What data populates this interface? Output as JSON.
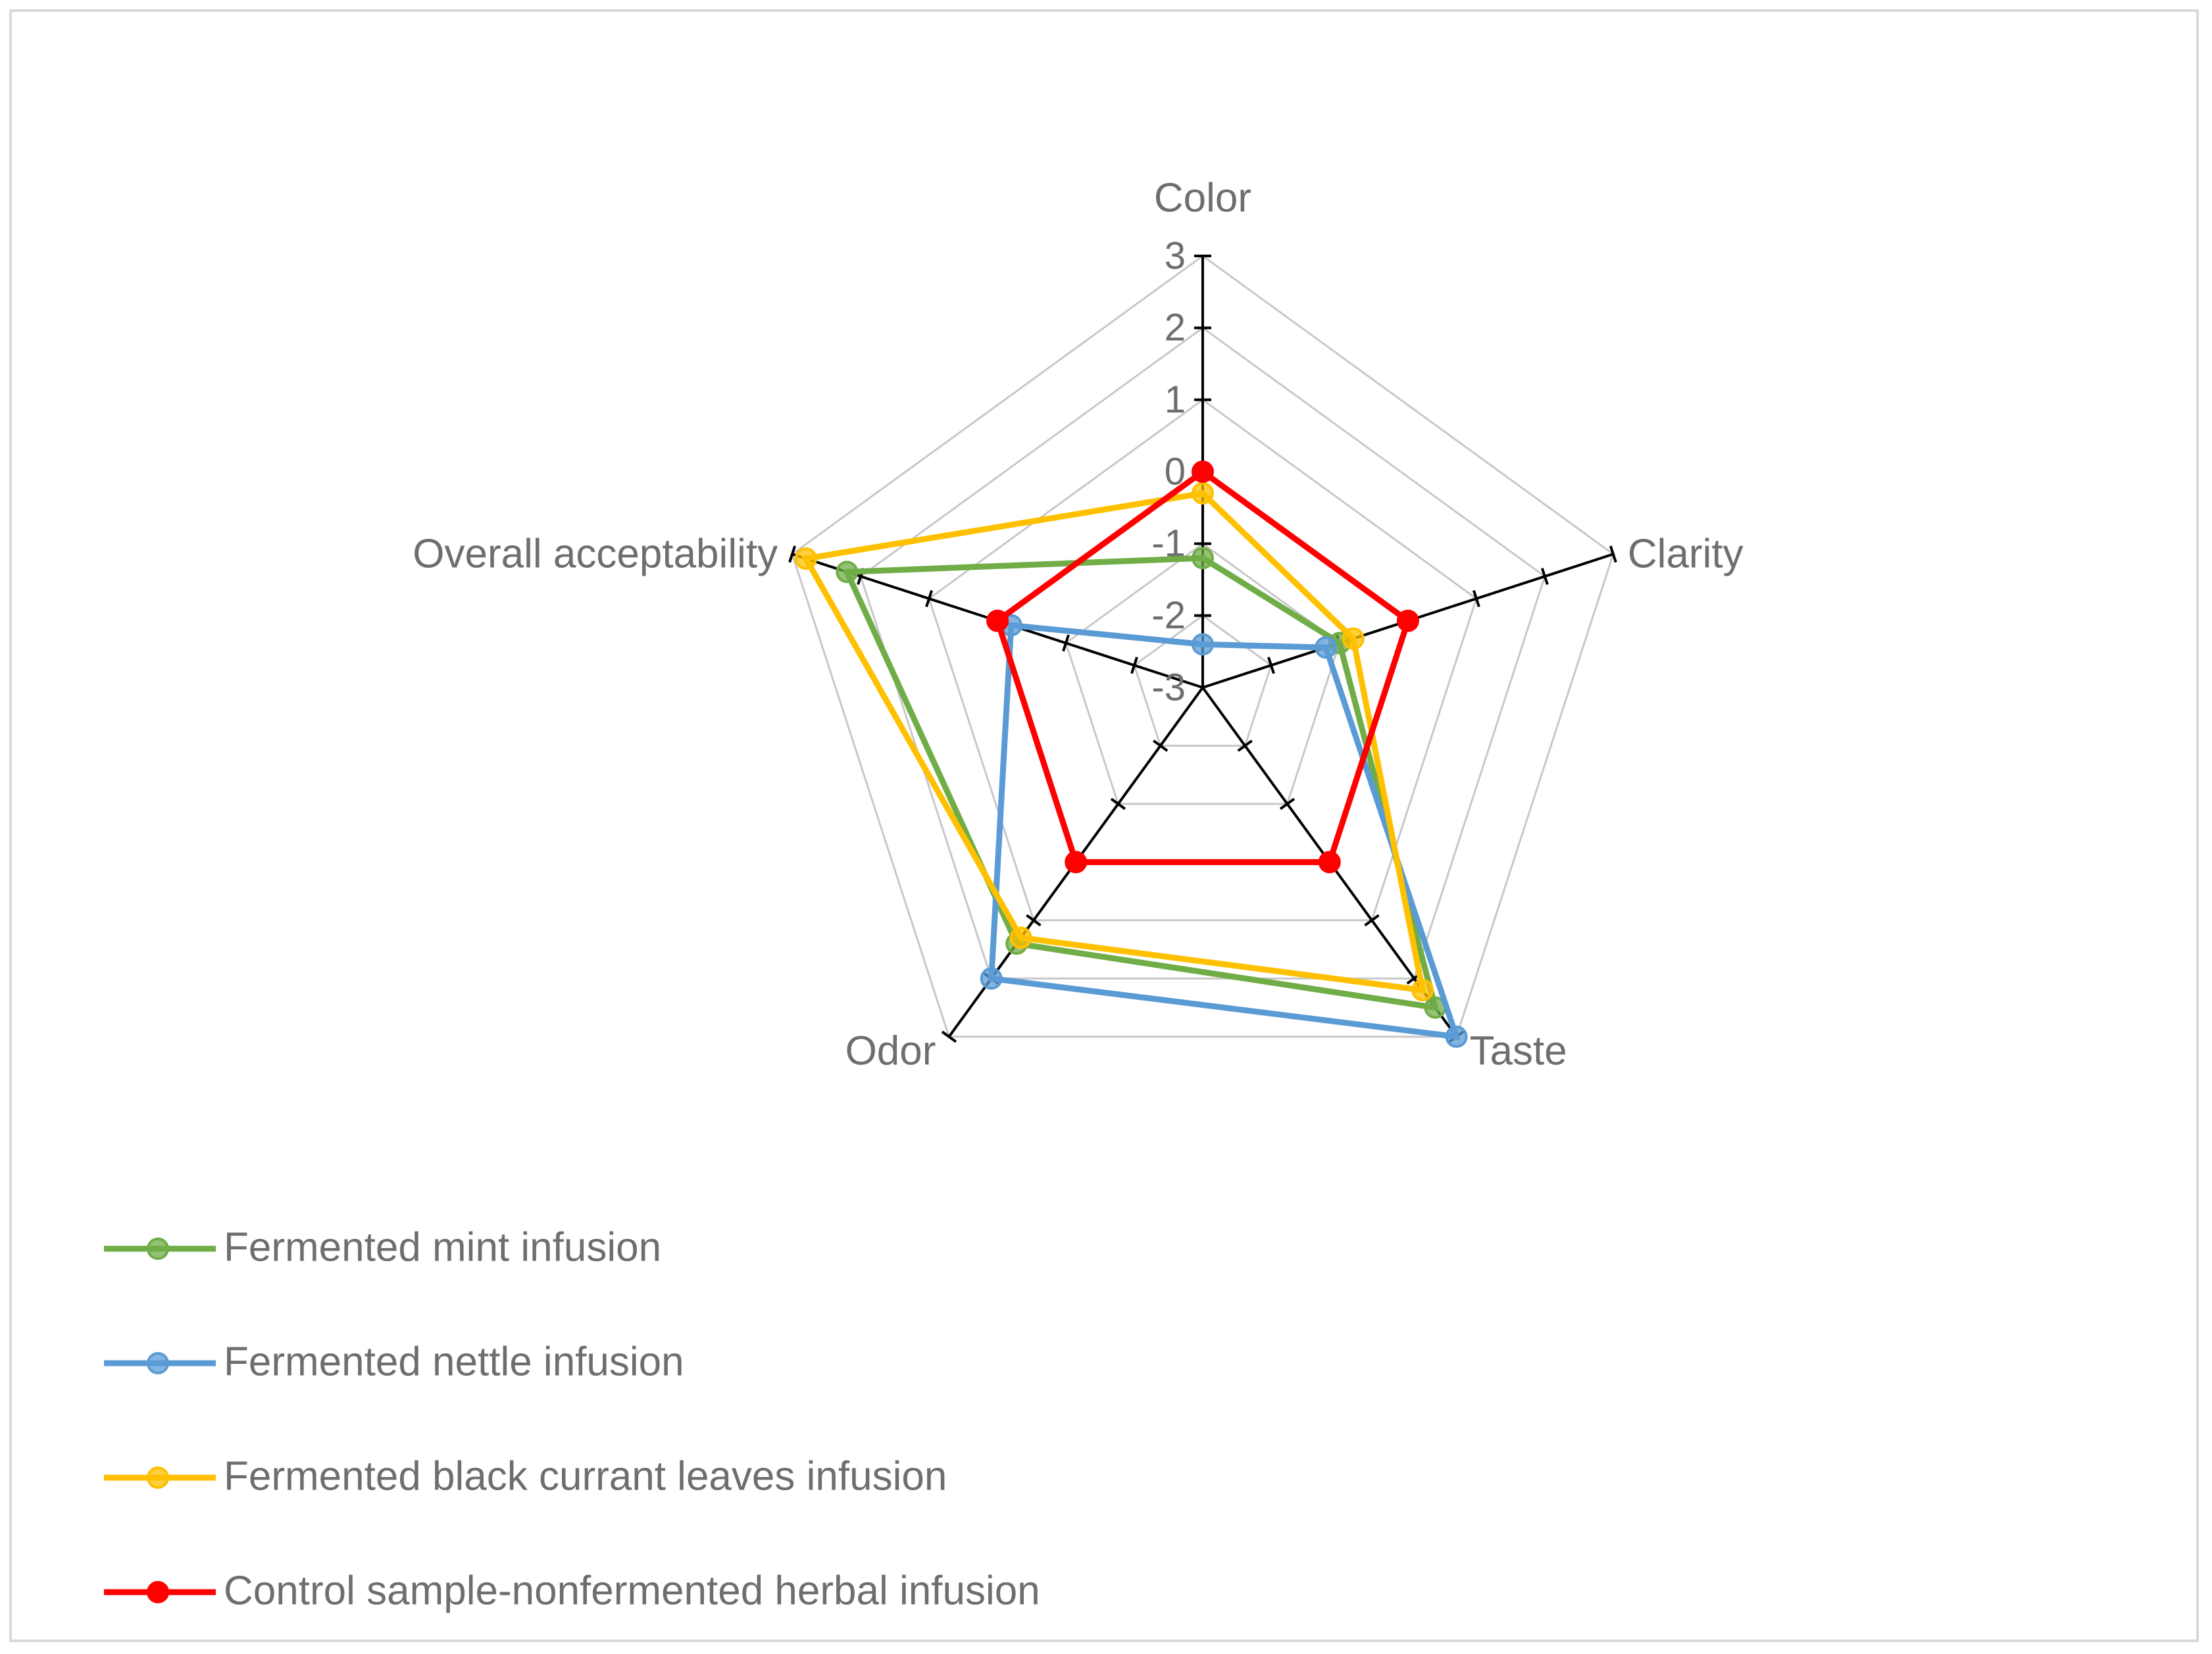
{
  "chart_data": {
    "type": "radar",
    "axes": [
      "Color",
      "Clarity",
      "Taste",
      "Odor",
      "Overall acceptability"
    ],
    "r_ticks": [
      "3",
      "2",
      "1",
      "0",
      "-1",
      "-2",
      "-3"
    ],
    "r_range": [
      -3,
      3
    ],
    "series": [
      {
        "name": "Fermented mint infusion",
        "color": "#70ad47",
        "values": [
          -1.2,
          -1.0,
          2.5,
          1.4,
          2.2
        ]
      },
      {
        "name": "Fermented nettle infusion",
        "color": "#5b9bd5",
        "values": [
          -2.4,
          -1.2,
          3.0,
          2.0,
          -0.2
        ]
      },
      {
        "name": "Fermented black currant leaves infusion",
        "color": "#ffc000",
        "values": [
          -0.3,
          -0.8,
          2.2,
          1.3,
          2.8
        ]
      },
      {
        "name": "Control sample-nonfermented herbal infusion",
        "color": "#ff0000",
        "values": [
          0,
          0,
          0,
          0,
          0
        ]
      }
    ],
    "legend_position": "bottom-left",
    "grid": true
  }
}
